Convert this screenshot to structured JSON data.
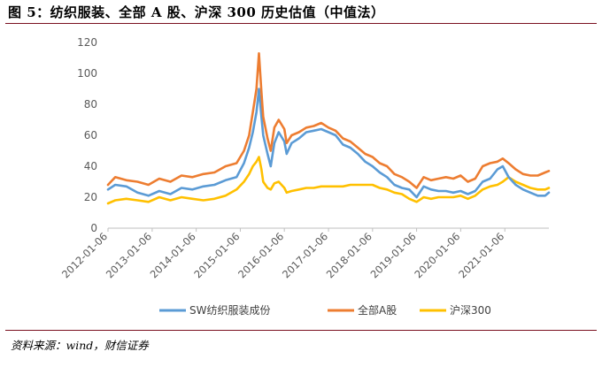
{
  "figure": {
    "title": "图 5：纺织服装、全部 A 股、沪深 300 历史估值（中值法）",
    "source": "资料来源：wind，财信证券"
  },
  "chart_data": {
    "type": "line",
    "title": "",
    "xlabel": "",
    "ylabel": "",
    "ylim": [
      0,
      120
    ],
    "yticks": [
      0,
      20,
      40,
      60,
      80,
      100,
      120
    ],
    "xlim": [
      "2012-01-06",
      "2022-01-06"
    ],
    "xticks": [
      "2012-01-06",
      "2013-01-06",
      "2014-01-06",
      "2015-01-06",
      "2016-01-06",
      "2017-01-06",
      "2018-01-06",
      "2019-01-06",
      "2020-01-06",
      "2021-01-06"
    ],
    "grid": false,
    "legend": "bottom",
    "series": [
      {
        "name": "SW纺织服装成份",
        "color": "#5b9bd5",
        "points": [
          [
            "2012-01-06",
            25
          ],
          [
            "2012-03-06",
            28
          ],
          [
            "2012-06-06",
            27
          ],
          [
            "2012-09-06",
            23
          ],
          [
            "2012-12-06",
            21
          ],
          [
            "2013-03-06",
            24
          ],
          [
            "2013-06-06",
            22
          ],
          [
            "2013-09-06",
            26
          ],
          [
            "2013-12-06",
            25
          ],
          [
            "2014-03-06",
            27
          ],
          [
            "2014-06-06",
            28
          ],
          [
            "2014-09-06",
            31
          ],
          [
            "2014-12-06",
            33
          ],
          [
            "2015-02-06",
            42
          ],
          [
            "2015-03-20",
            52
          ],
          [
            "2015-04-20",
            62
          ],
          [
            "2015-05-20",
            75
          ],
          [
            "2015-06-10",
            90
          ],
          [
            "2015-06-30",
            72
          ],
          [
            "2015-07-15",
            60
          ],
          [
            "2015-08-20",
            48
          ],
          [
            "2015-09-15",
            40
          ],
          [
            "2015-10-15",
            55
          ],
          [
            "2015-11-20",
            62
          ],
          [
            "2016-01-06",
            56
          ],
          [
            "2016-01-25",
            48
          ],
          [
            "2016-03-06",
            55
          ],
          [
            "2016-05-06",
            58
          ],
          [
            "2016-07-06",
            62
          ],
          [
            "2016-09-06",
            63
          ],
          [
            "2016-11-06",
            64
          ],
          [
            "2017-01-06",
            62
          ],
          [
            "2017-03-06",
            60
          ],
          [
            "2017-05-06",
            54
          ],
          [
            "2017-07-06",
            52
          ],
          [
            "2017-09-06",
            48
          ],
          [
            "2017-11-06",
            43
          ],
          [
            "2018-01-06",
            40
          ],
          [
            "2018-03-06",
            36
          ],
          [
            "2018-05-06",
            33
          ],
          [
            "2018-07-06",
            28
          ],
          [
            "2018-09-06",
            26
          ],
          [
            "2018-11-06",
            25
          ],
          [
            "2019-01-06",
            20
          ],
          [
            "2019-03-06",
            27
          ],
          [
            "2019-05-06",
            25
          ],
          [
            "2019-07-06",
            24
          ],
          [
            "2019-09-06",
            24
          ],
          [
            "2019-11-06",
            23
          ],
          [
            "2020-01-06",
            24
          ],
          [
            "2020-03-06",
            22
          ],
          [
            "2020-05-06",
            24
          ],
          [
            "2020-07-06",
            30
          ],
          [
            "2020-09-06",
            32
          ],
          [
            "2020-11-06",
            38
          ],
          [
            "2020-12-20",
            40
          ],
          [
            "2021-02-06",
            33
          ],
          [
            "2021-04-06",
            28
          ],
          [
            "2021-06-06",
            25
          ],
          [
            "2021-08-06",
            23
          ],
          [
            "2021-10-06",
            21
          ],
          [
            "2021-12-06",
            21
          ],
          [
            "2022-01-06",
            23
          ]
        ]
      },
      {
        "name": "全部A股",
        "color": "#ed7d31",
        "points": [
          [
            "2012-01-06",
            28
          ],
          [
            "2012-03-06",
            33
          ],
          [
            "2012-06-06",
            31
          ],
          [
            "2012-09-06",
            30
          ],
          [
            "2012-12-06",
            28
          ],
          [
            "2013-03-06",
            32
          ],
          [
            "2013-06-06",
            30
          ],
          [
            "2013-09-06",
            34
          ],
          [
            "2013-12-06",
            33
          ],
          [
            "2014-03-06",
            35
          ],
          [
            "2014-06-06",
            36
          ],
          [
            "2014-09-06",
            40
          ],
          [
            "2014-12-06",
            42
          ],
          [
            "2015-02-06",
            50
          ],
          [
            "2015-03-20",
            60
          ],
          [
            "2015-04-20",
            75
          ],
          [
            "2015-05-20",
            90
          ],
          [
            "2015-06-10",
            113
          ],
          [
            "2015-06-30",
            88
          ],
          [
            "2015-07-15",
            72
          ],
          [
            "2015-08-20",
            58
          ],
          [
            "2015-09-15",
            50
          ],
          [
            "2015-10-15",
            65
          ],
          [
            "2015-11-20",
            70
          ],
          [
            "2016-01-06",
            64
          ],
          [
            "2016-01-25",
            55
          ],
          [
            "2016-03-06",
            60
          ],
          [
            "2016-05-06",
            62
          ],
          [
            "2016-07-06",
            65
          ],
          [
            "2016-09-06",
            66
          ],
          [
            "2016-11-06",
            68
          ],
          [
            "2017-01-06",
            65
          ],
          [
            "2017-03-06",
            63
          ],
          [
            "2017-05-06",
            58
          ],
          [
            "2017-07-06",
            56
          ],
          [
            "2017-09-06",
            52
          ],
          [
            "2017-11-06",
            48
          ],
          [
            "2018-01-06",
            46
          ],
          [
            "2018-03-06",
            42
          ],
          [
            "2018-05-06",
            40
          ],
          [
            "2018-07-06",
            35
          ],
          [
            "2018-09-06",
            33
          ],
          [
            "2018-11-06",
            30
          ],
          [
            "2019-01-06",
            26
          ],
          [
            "2019-03-06",
            33
          ],
          [
            "2019-05-06",
            31
          ],
          [
            "2019-07-06",
            32
          ],
          [
            "2019-09-06",
            33
          ],
          [
            "2019-11-06",
            32
          ],
          [
            "2020-01-06",
            34
          ],
          [
            "2020-03-06",
            30
          ],
          [
            "2020-05-06",
            32
          ],
          [
            "2020-07-06",
            40
          ],
          [
            "2020-09-06",
            42
          ],
          [
            "2020-11-06",
            43
          ],
          [
            "2020-12-20",
            45
          ],
          [
            "2021-02-06",
            42
          ],
          [
            "2021-04-06",
            38
          ],
          [
            "2021-06-06",
            35
          ],
          [
            "2021-08-06",
            34
          ],
          [
            "2021-10-06",
            34
          ],
          [
            "2021-12-06",
            36
          ],
          [
            "2022-01-06",
            37
          ]
        ]
      },
      {
        "name": "沪深300",
        "color": "#ffc000",
        "points": [
          [
            "2012-01-06",
            16
          ],
          [
            "2012-03-06",
            18
          ],
          [
            "2012-06-06",
            19
          ],
          [
            "2012-09-06",
            18
          ],
          [
            "2012-12-06",
            17
          ],
          [
            "2013-03-06",
            20
          ],
          [
            "2013-06-06",
            18
          ],
          [
            "2013-09-06",
            20
          ],
          [
            "2013-12-06",
            19
          ],
          [
            "2014-03-06",
            18
          ],
          [
            "2014-06-06",
            19
          ],
          [
            "2014-09-06",
            21
          ],
          [
            "2014-12-06",
            25
          ],
          [
            "2015-02-06",
            30
          ],
          [
            "2015-03-20",
            35
          ],
          [
            "2015-04-20",
            40
          ],
          [
            "2015-05-20",
            43
          ],
          [
            "2015-06-10",
            46
          ],
          [
            "2015-06-30",
            38
          ],
          [
            "2015-07-15",
            30
          ],
          [
            "2015-08-20",
            26
          ],
          [
            "2015-09-15",
            25
          ],
          [
            "2015-10-15",
            29
          ],
          [
            "2015-11-20",
            30
          ],
          [
            "2016-01-06",
            26
          ],
          [
            "2016-01-25",
            23
          ],
          [
            "2016-03-06",
            24
          ],
          [
            "2016-05-06",
            25
          ],
          [
            "2016-07-06",
            26
          ],
          [
            "2016-09-06",
            26
          ],
          [
            "2016-11-06",
            27
          ],
          [
            "2017-01-06",
            27
          ],
          [
            "2017-03-06",
            27
          ],
          [
            "2017-05-06",
            27
          ],
          [
            "2017-07-06",
            28
          ],
          [
            "2017-09-06",
            28
          ],
          [
            "2017-11-06",
            28
          ],
          [
            "2018-01-06",
            28
          ],
          [
            "2018-03-06",
            26
          ],
          [
            "2018-05-06",
            25
          ],
          [
            "2018-07-06",
            23
          ],
          [
            "2018-09-06",
            22
          ],
          [
            "2018-11-06",
            19
          ],
          [
            "2019-01-06",
            17
          ],
          [
            "2019-03-06",
            20
          ],
          [
            "2019-05-06",
            19
          ],
          [
            "2019-07-06",
            20
          ],
          [
            "2019-09-06",
            20
          ],
          [
            "2019-11-06",
            20
          ],
          [
            "2020-01-06",
            21
          ],
          [
            "2020-03-06",
            19
          ],
          [
            "2020-05-06",
            21
          ],
          [
            "2020-07-06",
            25
          ],
          [
            "2020-09-06",
            27
          ],
          [
            "2020-11-06",
            28
          ],
          [
            "2020-12-20",
            30
          ],
          [
            "2021-02-06",
            33
          ],
          [
            "2021-04-06",
            30
          ],
          [
            "2021-06-06",
            28
          ],
          [
            "2021-08-06",
            26
          ],
          [
            "2021-10-06",
            25
          ],
          [
            "2021-12-06",
            25
          ],
          [
            "2022-01-06",
            26
          ]
        ]
      }
    ]
  }
}
